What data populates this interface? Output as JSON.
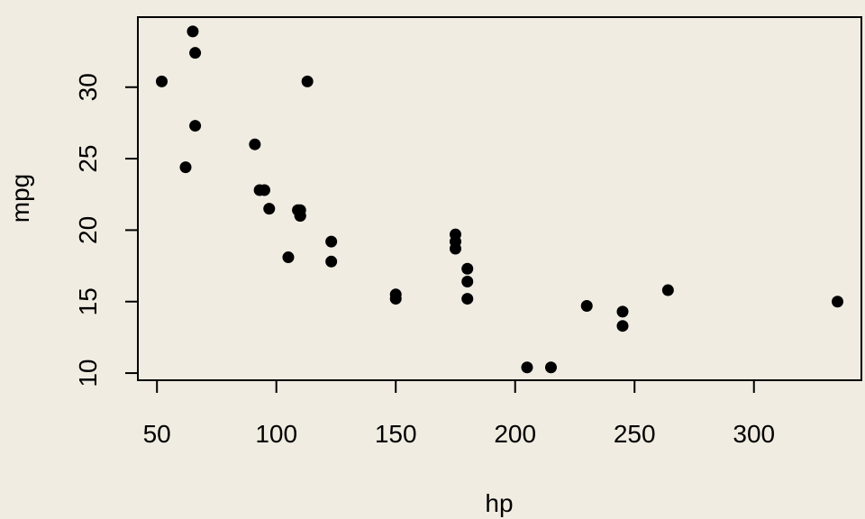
{
  "chart_data": {
    "type": "scatter",
    "title": "",
    "xlabel": "hp",
    "ylabel": "mpg",
    "xlim": [
      42,
      345
    ],
    "ylim": [
      9.5,
      34.9
    ],
    "xticks": [
      50,
      100,
      150,
      200,
      250,
      300
    ],
    "yticks": [
      10,
      15,
      20,
      25,
      30
    ],
    "grid": false,
    "colors": {
      "background": "#f0ece1",
      "points": "#000000"
    },
    "x": [
      110,
      110,
      93,
      110,
      175,
      105,
      245,
      62,
      95,
      123,
      123,
      180,
      180,
      180,
      205,
      215,
      230,
      66,
      52,
      65,
      97,
      150,
      150,
      245,
      175,
      66,
      91,
      113,
      264,
      175,
      335,
      109
    ],
    "y": [
      21.0,
      21.0,
      22.8,
      21.4,
      18.7,
      18.1,
      14.3,
      24.4,
      22.8,
      19.2,
      17.8,
      16.4,
      17.3,
      15.2,
      10.4,
      10.4,
      14.7,
      32.4,
      30.4,
      33.9,
      21.5,
      15.5,
      15.2,
      13.3,
      19.2,
      27.3,
      26.0,
      30.4,
      15.8,
      19.7,
      15.0,
      21.4
    ]
  }
}
